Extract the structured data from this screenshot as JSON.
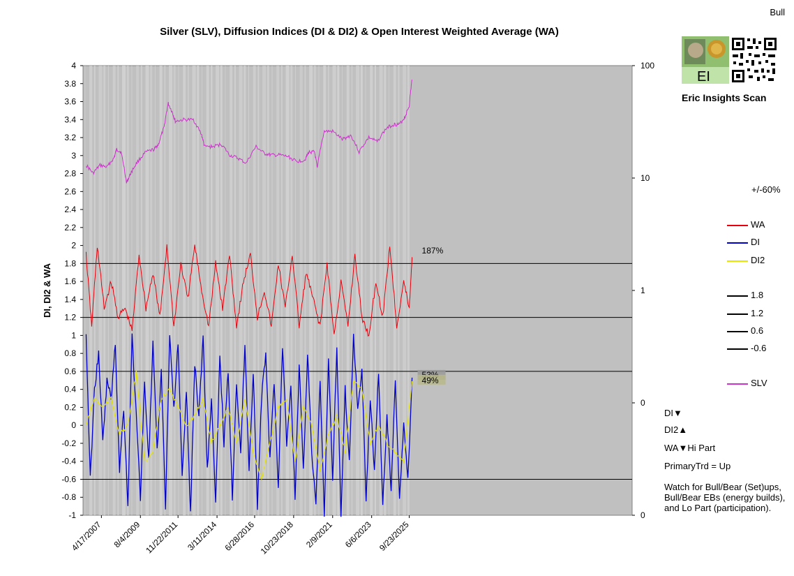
{
  "header": {
    "title": "Silver (SLV), Diffusion Indices (DI & DI2) & Open Interest Weighted Average (WA)",
    "signal": "Bull"
  },
  "branding": {
    "logo_text": "EI",
    "scan_label": "Eric Insights Scan"
  },
  "side_panel": {
    "range_label": "+/-60%",
    "legend": [
      {
        "label": "WA",
        "color": "#e8000b"
      },
      {
        "label": "DI",
        "color": "#0000cc"
      },
      {
        "label": "DI2",
        "color": "#e6e600"
      },
      {
        "label": "1.8",
        "color": "#000000"
      },
      {
        "label": "1.2",
        "color": "#000000"
      },
      {
        "label": "0.6",
        "color": "#000000"
      },
      {
        "label": "-0.6",
        "color": "#000000"
      },
      {
        "label": "SLV",
        "color": "#cc33cc"
      }
    ],
    "status_lines": [
      "DI▼",
      "DI2▲",
      "WA▼Hi Part",
      "PrimaryTrd = Up"
    ],
    "watch_note": "Watch for Bull/Bear (Set)ups, Bull/Bear EBs (energy builds), and Lo Part (participation)."
  },
  "chart_data": {
    "type": "line",
    "title": "Silver (SLV), Diffusion Indices (DI & DI2) & Open Interest Weighted Average (WA)",
    "ylabel": "DI, DI2 & WA",
    "y2label": "SLV",
    "ylim": [
      -1,
      4
    ],
    "y_ticks": [
      "4",
      "3.8",
      "3.6",
      "3.4",
      "3.2",
      "3",
      "2.8",
      "2.6",
      "2.4",
      "2.2",
      "2",
      "1.8",
      "1.6",
      "1.4",
      "1.2",
      "1",
      "0.8",
      "0.6",
      "0.4",
      "0.2",
      "0",
      "-0.2",
      "-0.4",
      "-0.6",
      "-0.8",
      "-1"
    ],
    "y2_scale": "log",
    "y2_ticks": [
      "100",
      "10",
      "1",
      "0",
      "0"
    ],
    "x_tick_labels": [
      "4/17/2007",
      "8/4/2009",
      "11/22/2011",
      "3/11/2014",
      "6/28/2016",
      "10/23/2018",
      "2/9/2021",
      "6/6/2023",
      "9/23/2025"
    ],
    "x_range": [
      "2006-04",
      "2025-11"
    ],
    "reference_lines": [
      1.8,
      1.2,
      0.6,
      -0.6
    ],
    "grid": false,
    "legend_position": "right",
    "annotations": [
      {
        "text": "187%",
        "series": "WA",
        "y": 1.88
      },
      {
        "text": "53%",
        "series": "DI",
        "y": 0.53
      },
      {
        "text": "49%",
        "series": "DI2",
        "y": 0.49
      }
    ],
    "series": [
      {
        "name": "SLV",
        "axis": "right",
        "color": "#cc33cc",
        "x": [
          "2006-05",
          "2006-10",
          "2007-03",
          "2007-08",
          "2008-01",
          "2008-03",
          "2008-06",
          "2008-10",
          "2009-01",
          "2009-06",
          "2009-12",
          "2010-06",
          "2010-09",
          "2011-01",
          "2011-04",
          "2011-07",
          "2011-09",
          "2012-03",
          "2012-10",
          "2013-04",
          "2013-06",
          "2013-12",
          "2014-06",
          "2014-12",
          "2015-06",
          "2015-12",
          "2016-07",
          "2017-01",
          "2017-06",
          "2017-12",
          "2018-06",
          "2018-12",
          "2019-06",
          "2019-09",
          "2020-01",
          "2020-03",
          "2020-08",
          "2021-02",
          "2021-09",
          "2022-03",
          "2022-09",
          "2023-04",
          "2023-10",
          "2024-05",
          "2024-10",
          "2025-02",
          "2025-06",
          "2025-09",
          "2025-11"
        ],
        "values": [
          13,
          11,
          13,
          12.5,
          15,
          18,
          17,
          9,
          11,
          14,
          17,
          18,
          20,
          28,
          46,
          38,
          32,
          33,
          33,
          24,
          19,
          19,
          20,
          16,
          15,
          13.5,
          19,
          16.5,
          16,
          16,
          15.5,
          14,
          14.5,
          17,
          17,
          12,
          26,
          26,
          22,
          24,
          17,
          23,
          21,
          28,
          30,
          30,
          35,
          44,
          75
        ]
      },
      {
        "name": "WA",
        "axis": "left",
        "color": "#e8000b",
        "x": [
          "2006-05",
          "2006-09",
          "2007-01",
          "2007-06",
          "2007-11",
          "2008-04",
          "2008-09",
          "2009-02",
          "2009-07",
          "2009-12",
          "2010-05",
          "2010-10",
          "2011-03",
          "2011-08",
          "2012-01",
          "2012-06",
          "2012-11",
          "2013-04",
          "2013-09",
          "2014-02",
          "2014-07",
          "2014-12",
          "2015-05",
          "2015-10",
          "2016-03",
          "2016-08",
          "2017-01",
          "2017-06",
          "2017-11",
          "2018-04",
          "2018-09",
          "2019-02",
          "2019-07",
          "2019-12",
          "2020-05",
          "2020-10",
          "2021-03",
          "2021-08",
          "2022-01",
          "2022-06",
          "2022-11",
          "2023-04",
          "2023-09",
          "2024-02",
          "2024-07",
          "2024-12",
          "2025-05",
          "2025-09",
          "2025-11"
        ],
        "values": [
          1.9,
          1.1,
          2.0,
          1.3,
          1.6,
          1.2,
          1.3,
          1.05,
          1.9,
          1.3,
          1.7,
          1.2,
          2.0,
          1.1,
          1.8,
          1.4,
          2.0,
          1.5,
          1.1,
          1.8,
          1.3,
          1.9,
          1.1,
          1.6,
          1.9,
          1.2,
          1.5,
          1.1,
          1.8,
          1.3,
          1.9,
          1.1,
          1.7,
          1.4,
          1.1,
          1.8,
          1.0,
          1.6,
          1.1,
          1.9,
          1.2,
          1.0,
          1.6,
          1.2,
          2.0,
          1.1,
          1.6,
          1.3,
          1.87
        ]
      },
      {
        "name": "DI",
        "axis": "left",
        "color": "#0000cc",
        "x": [
          "2006-05",
          "2006-08",
          "2006-11",
          "2007-02",
          "2007-05",
          "2007-08",
          "2007-11",
          "2008-02",
          "2008-05",
          "2008-08",
          "2008-11",
          "2009-02",
          "2009-05",
          "2009-08",
          "2009-11",
          "2010-02",
          "2010-05",
          "2010-08",
          "2010-11",
          "2011-02",
          "2011-05",
          "2011-08",
          "2011-11",
          "2012-02",
          "2012-05",
          "2012-08",
          "2012-11",
          "2013-02",
          "2013-05",
          "2013-08",
          "2013-11",
          "2014-02",
          "2014-05",
          "2014-08",
          "2014-11",
          "2015-02",
          "2015-05",
          "2015-08",
          "2015-11",
          "2016-02",
          "2016-05",
          "2016-08",
          "2016-11",
          "2017-02",
          "2017-05",
          "2017-08",
          "2017-11",
          "2018-02",
          "2018-05",
          "2018-08",
          "2018-11",
          "2019-02",
          "2019-05",
          "2019-08",
          "2019-11",
          "2020-02",
          "2020-05",
          "2020-08",
          "2020-11",
          "2021-02",
          "2021-05",
          "2021-08",
          "2021-11",
          "2022-02",
          "2022-05",
          "2022-08",
          "2022-11",
          "2023-02",
          "2023-05",
          "2023-08",
          "2023-11",
          "2024-02",
          "2024-05",
          "2024-08",
          "2024-11",
          "2025-02",
          "2025-05",
          "2025-08",
          "2025-11"
        ],
        "values": [
          1.0,
          -0.6,
          0.4,
          0.8,
          -0.2,
          0.5,
          0.3,
          0.9,
          -0.5,
          0.2,
          -0.9,
          1.0,
          0.1,
          -0.8,
          0.5,
          -0.4,
          0.9,
          -0.3,
          0.6,
          -0.9,
          1.0,
          0.2,
          0.9,
          -0.6,
          0.4,
          -1.0,
          0.7,
          0.1,
          1.0,
          -0.5,
          0.3,
          -0.9,
          0.8,
          -0.2,
          0.6,
          -0.8,
          0.5,
          -0.3,
          0.9,
          -0.5,
          0.6,
          -0.9,
          0.3,
          0.8,
          -0.4,
          0.5,
          -0.7,
          0.9,
          -0.2,
          0.4,
          -0.8,
          0.7,
          -0.5,
          0.8,
          -0.3,
          -0.9,
          0.5,
          -1.0,
          0.7,
          -0.6,
          0.9,
          -1.0,
          0.4,
          -0.4,
          1.0,
          0.2,
          0.6,
          -0.8,
          0.3,
          -0.5,
          0.6,
          -0.9,
          0.1,
          -0.7,
          0.5,
          -0.8,
          0.0,
          -0.6,
          0.53
        ]
      },
      {
        "name": "DI2",
        "axis": "left",
        "color": "#e6e600",
        "x": [
          "2006-05",
          "2006-11",
          "2007-05",
          "2007-11",
          "2008-05",
          "2008-11",
          "2009-05",
          "2009-11",
          "2010-05",
          "2010-11",
          "2011-05",
          "2011-11",
          "2012-05",
          "2012-11",
          "2013-05",
          "2013-11",
          "2014-05",
          "2014-11",
          "2015-05",
          "2015-11",
          "2016-05",
          "2016-11",
          "2017-05",
          "2017-11",
          "2018-05",
          "2018-11",
          "2019-05",
          "2019-11",
          "2020-05",
          "2020-11",
          "2021-05",
          "2021-11",
          "2022-05",
          "2022-11",
          "2023-05",
          "2023-11",
          "2024-05",
          "2024-11",
          "2025-05",
          "2025-11"
        ],
        "values": [
          0.0,
          0.3,
          0.2,
          0.3,
          -0.1,
          0.0,
          0.6,
          -0.4,
          -0.3,
          0.3,
          0.4,
          0.2,
          0.0,
          0.1,
          0.3,
          -0.2,
          0.0,
          0.2,
          -0.2,
          0.3,
          -0.3,
          -0.6,
          -0.2,
          0.2,
          0.3,
          -0.4,
          0.2,
          0.0,
          -0.5,
          -0.1,
          0.1,
          -0.3,
          0.5,
          0.4,
          -0.2,
          0.0,
          -0.2,
          -0.3,
          -0.4,
          0.49
        ]
      }
    ]
  }
}
